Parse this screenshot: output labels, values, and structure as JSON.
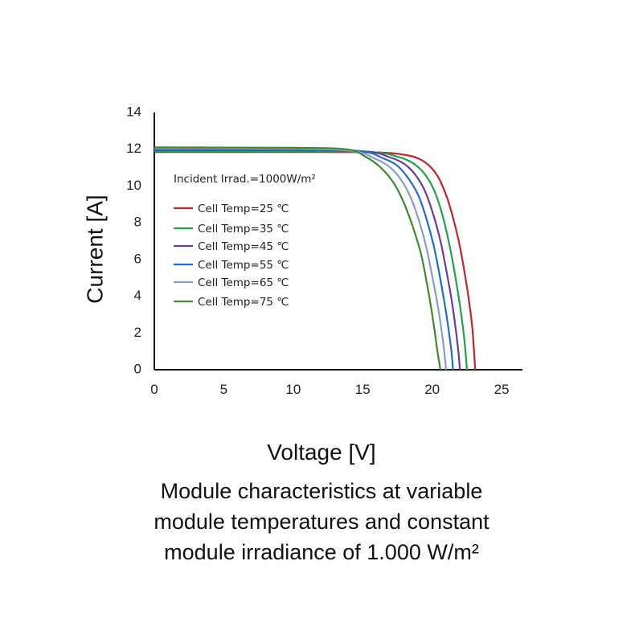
{
  "chart_data": {
    "type": "line",
    "xlabel": "Voltage [V]",
    "ylabel": "Current [A]",
    "xlim": [
      0,
      26.5
    ],
    "ylim": [
      0,
      14
    ],
    "xticks": [
      "0",
      "5",
      "10",
      "15",
      "20",
      "25"
    ],
    "xtick_values": [
      0,
      5,
      10,
      15,
      20,
      25
    ],
    "yticks": [
      "0",
      "2",
      "4",
      "6",
      "8",
      "10",
      "12",
      "14"
    ],
    "ytick_values": [
      0,
      2,
      4,
      6,
      8,
      10,
      12,
      14
    ],
    "grid": false,
    "legend_position": "left",
    "annotation": "Incident Irrad.=1000W/m²",
    "series": [
      {
        "name": "Cell Temp=25 ℃",
        "color": "#c0272d",
        "isc": 11.85,
        "voc": 23.1,
        "x": [
          0,
          10,
          16,
          18,
          19,
          19.8,
          20.5,
          21.1,
          21.6,
          22.0,
          22.4,
          22.7,
          22.9,
          23.0,
          23.1
        ],
        "y": [
          11.85,
          11.85,
          11.83,
          11.7,
          11.5,
          11.1,
          10.4,
          9.3,
          8.0,
          6.7,
          5.0,
          3.5,
          2.2,
          1.2,
          0
        ]
      },
      {
        "name": "Cell Temp=35 ℃",
        "color": "#22a34a",
        "isc": 11.9,
        "voc": 22.5,
        "x": [
          0,
          10,
          15.6,
          17.5,
          18.5,
          19.3,
          20.0,
          20.6,
          21.1,
          21.5,
          21.9,
          22.2,
          22.4,
          22.5
        ],
        "y": [
          11.9,
          11.9,
          11.85,
          11.6,
          11.3,
          10.8,
          10.0,
          8.8,
          7.3,
          5.8,
          4.0,
          2.4,
          1.0,
          0
        ]
      },
      {
        "name": "Cell Temp=45 ℃",
        "color": "#6a3d9a",
        "isc": 11.95,
        "voc": 22.0,
        "x": [
          0,
          10,
          15.2,
          17.0,
          18.0,
          18.8,
          19.5,
          20.1,
          20.6,
          21.0,
          21.4,
          21.7,
          21.9,
          22.0
        ],
        "y": [
          11.95,
          11.95,
          11.88,
          11.55,
          11.2,
          10.6,
          9.7,
          8.4,
          7.0,
          5.5,
          3.8,
          2.2,
          0.9,
          0
        ]
      },
      {
        "name": "Cell Temp=55 ℃",
        "color": "#1f6fc0",
        "isc": 12.0,
        "voc": 21.5,
        "x": [
          0,
          10,
          14.8,
          16.5,
          17.5,
          18.3,
          19.0,
          19.6,
          20.1,
          20.5,
          20.9,
          21.2,
          21.4,
          21.5
        ],
        "y": [
          12.0,
          12.0,
          11.9,
          11.5,
          11.1,
          10.4,
          9.5,
          8.2,
          6.8,
          5.3,
          3.6,
          2.1,
          0.9,
          0
        ]
      },
      {
        "name": "Cell Temp=65 ℃",
        "color": "#8a9cc8",
        "isc": 12.05,
        "voc": 21.0,
        "x": [
          0,
          10,
          14.3,
          16.0,
          17.0,
          17.8,
          18.5,
          19.1,
          19.6,
          20.0,
          20.4,
          20.7,
          20.9,
          21.0
        ],
        "y": [
          12.05,
          12.03,
          11.9,
          11.45,
          11.0,
          10.3,
          9.3,
          8.0,
          6.6,
          5.1,
          3.5,
          2.0,
          0.8,
          0
        ]
      },
      {
        "name": "Cell Temp=75 ℃",
        "color": "#3e8a2e",
        "isc": 12.1,
        "voc": 20.6,
        "x": [
          0,
          10,
          13.8,
          15.2,
          16.3,
          17.2,
          17.9,
          18.6,
          19.2,
          19.6,
          19.9,
          20.2,
          20.4,
          20.6
        ],
        "y": [
          12.1,
          12.08,
          12.0,
          11.6,
          11.0,
          10.2,
          9.2,
          7.8,
          6.3,
          4.8,
          3.5,
          2.0,
          0.9,
          0
        ]
      }
    ]
  },
  "caption": {
    "line1": "Module characteristics at variable",
    "line2": "module temperatures and constant",
    "line3": "module irradiance of 1.000 W/m²"
  }
}
